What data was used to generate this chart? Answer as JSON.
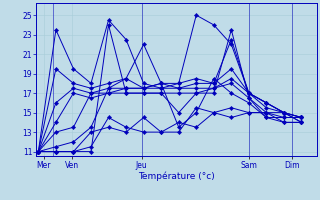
{
  "xlabel": "Température (°c)",
  "bg_color": "#c0dce8",
  "grid_color": "#a8ccd8",
  "line_color": "#0000bb",
  "marker_color": "#0000bb",
  "yticks": [
    11,
    13,
    15,
    17,
    19,
    21,
    23,
    25
  ],
  "ylim": [
    10.5,
    26.2
  ],
  "xlim": [
    -0.1,
    14.8
  ],
  "day_labels": [
    "Mer",
    "Ven",
    "Jeu",
    "Sam",
    "Dim"
  ],
  "day_x": [
    0.3,
    1.8,
    5.5,
    11.2,
    13.5
  ],
  "vline_x": [
    0.8,
    5.5,
    11.2,
    13.5
  ],
  "lines": [
    [
      11.0,
      23.5,
      19.5,
      18.0,
      24.5,
      22.5,
      18.0,
      17.5,
      18.0,
      25.0,
      24.0,
      22.0,
      17.0,
      16.0,
      15.0,
      14.5
    ],
    [
      11.0,
      19.5,
      18.0,
      17.5,
      18.0,
      18.5,
      17.5,
      18.0,
      18.0,
      18.5,
      18.0,
      22.5,
      17.0,
      16.0,
      15.0,
      14.5
    ],
    [
      11.0,
      16.0,
      17.5,
      17.0,
      17.5,
      17.5,
      17.5,
      18.0,
      17.5,
      18.0,
      18.0,
      19.5,
      17.0,
      16.0,
      15.0,
      14.0
    ],
    [
      11.0,
      14.0,
      17.0,
      16.5,
      17.0,
      17.5,
      17.5,
      17.5,
      17.5,
      17.5,
      17.5,
      18.5,
      17.0,
      15.5,
      15.0,
      14.0
    ],
    [
      11.0,
      13.0,
      13.5,
      17.0,
      17.0,
      17.0,
      17.0,
      17.0,
      17.0,
      17.0,
      17.5,
      18.0,
      16.5,
      15.0,
      14.0,
      14.0
    ],
    [
      11.0,
      11.5,
      12.0,
      13.5,
      17.5,
      18.5,
      22.0,
      18.0,
      13.5,
      15.0,
      18.5,
      17.0,
      16.0,
      14.5,
      14.0,
      14.0
    ],
    [
      11.0,
      11.0,
      11.0,
      13.0,
      13.5,
      13.0,
      14.5,
      13.0,
      13.0,
      15.5,
      15.0,
      15.5,
      15.0,
      15.0,
      15.0,
      14.5
    ],
    [
      11.0,
      11.0,
      11.0,
      11.5,
      14.5,
      13.5,
      13.0,
      13.0,
      14.0,
      13.5,
      15.0,
      14.5,
      15.0,
      15.0,
      14.5,
      14.5
    ],
    [
      11.0,
      11.0,
      11.0,
      11.0,
      24.0,
      17.0,
      17.0,
      17.0,
      15.0,
      17.0,
      17.0,
      23.5,
      16.5,
      14.5,
      14.5,
      14.5
    ]
  ]
}
